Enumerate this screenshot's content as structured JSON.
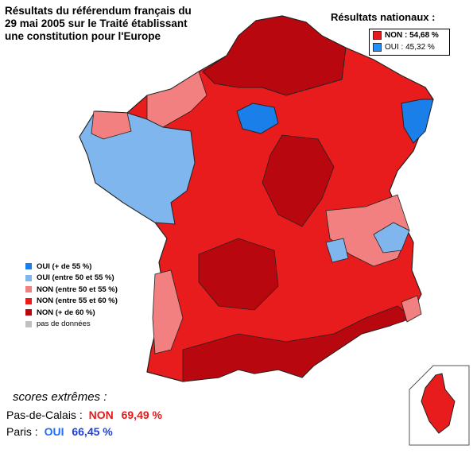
{
  "title": "Résultats du référendum français du 29 mai 2005 sur le Traité établissant une constitution pour l'Europe",
  "national": {
    "heading": "Résultats nationaux :",
    "rows": [
      {
        "label": "NON : 54,68 %",
        "color": "#e41a1c"
      },
      {
        "label": "OUI : 45,32 %",
        "color": "#1e90ff"
      }
    ]
  },
  "legend": [
    {
      "label": "OUI (+ de 55 %)",
      "color": "#1a7fe8"
    },
    {
      "label": "OUI (entre 50 et 55 %)",
      "color": "#7fb6ee"
    },
    {
      "label": "NON (entre 50 et 55 %)",
      "color": "#f28080"
    },
    {
      "label": "NON (entre 55 et 60 %)",
      "color": "#e81c1c"
    },
    {
      "label": "NON (+ de 60 %)",
      "color": "#b8070f"
    },
    {
      "label": "pas de données",
      "color": "#c0c0c0"
    }
  ],
  "extremes": {
    "heading": "scores extrêmes :",
    "items": [
      {
        "place": "Pas-de-Calais :",
        "vote": "NON",
        "pct": "69,49 %",
        "vote_color": "#e41a1c",
        "pct_color": "#e41a1c"
      },
      {
        "place": "Paris :",
        "vote": "OUI",
        "pct": "66,45 %",
        "vote_color": "#1e6fff",
        "pct_color": "#1e3fdd"
      }
    ]
  }
}
